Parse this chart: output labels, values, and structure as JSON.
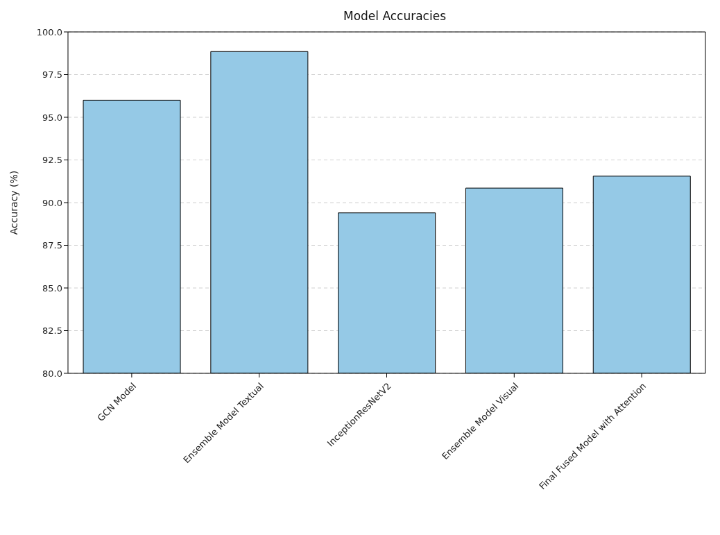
{
  "chart_data": {
    "type": "bar",
    "title": "Model Accuracies",
    "ylabel": "Accuracy (%)",
    "categories": [
      "GCN Model",
      "Ensemble Model Textual",
      "InceptionResNetV2",
      "Ensemble Model Visual",
      "Final Fused Model with Attention"
    ],
    "values": [
      96.0,
      98.85,
      89.4,
      90.85,
      91.55
    ],
    "color": "#95c9e6",
    "ylim": [
      80,
      100
    ],
    "yticks": [
      {
        "value": 80,
        "label": "80.0"
      },
      {
        "value": 82.5,
        "label": "82.5"
      },
      {
        "value": 85,
        "label": "85.0"
      },
      {
        "value": 87.5,
        "label": "87.5"
      },
      {
        "value": 90,
        "label": "90.0"
      },
      {
        "value": 92.5,
        "label": "92.5"
      },
      {
        "value": 95,
        "label": "95.0"
      },
      {
        "value": 97.5,
        "label": "97.5"
      },
      {
        "value": 100,
        "label": "100.0"
      }
    ],
    "grid": "y"
  }
}
